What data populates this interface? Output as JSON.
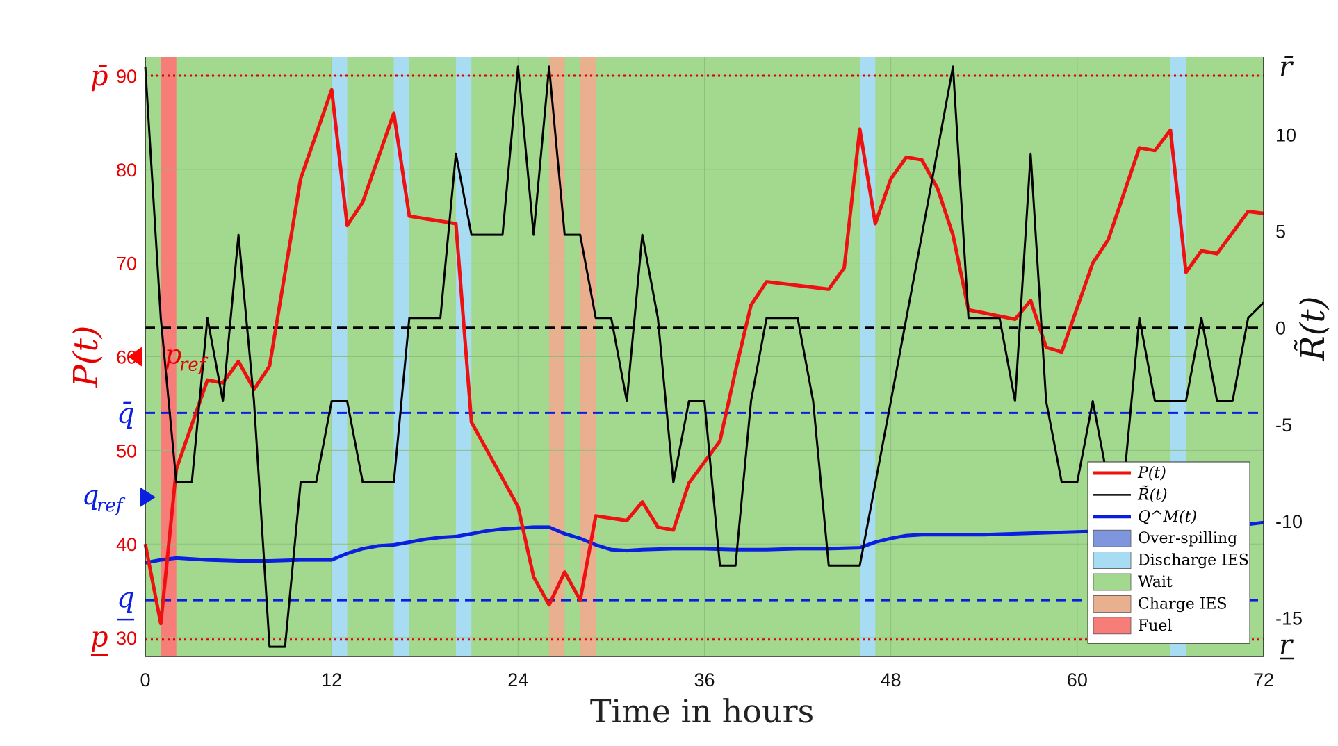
{
  "chart_data": {
    "type": "line",
    "xlabel": "Time in hours",
    "ylabel_left": "P(t)",
    "ylabel_right": "R̃(t)",
    "xlim": [
      0,
      72
    ],
    "ylim_left": [
      28,
      92
    ],
    "ylim_right": [
      -17,
      14
    ],
    "x_ticks": [
      0,
      12,
      24,
      36,
      48,
      60,
      72
    ],
    "y_ticks_left": [
      30,
      40,
      50,
      60,
      70,
      80,
      90
    ],
    "y_ticks_right": [
      -15,
      -10,
      -5,
      0,
      5,
      10
    ],
    "grid": true,
    "legend_position": "bottom-right",
    "left_axis_symbols": {
      "p_max": "p̄",
      "p_min": "p",
      "q_max": "q̄",
      "q_min": "q",
      "p_ref": "p",
      "p_ref_sub": "ref",
      "q_ref": "q",
      "q_ref_sub": "ref"
    },
    "right_axis_symbols": {
      "r_max": "r̄",
      "r_min": "r"
    },
    "reference_lines": {
      "p_max": 90,
      "p_min": 29.8,
      "q_max": 54,
      "q_min": 34,
      "p_ref": 60,
      "q_ref": 45,
      "r_zero": 0
    },
    "phases": [
      {
        "start": 1,
        "end": 2,
        "mode": "Fuel"
      },
      {
        "start": 12,
        "end": 13,
        "mode": "Discharge IES"
      },
      {
        "start": 16,
        "end": 17,
        "mode": "Discharge IES"
      },
      {
        "start": 20,
        "end": 21,
        "mode": "Discharge IES"
      },
      {
        "start": 26,
        "end": 27,
        "mode": "Charge IES"
      },
      {
        "start": 28,
        "end": 29,
        "mode": "Charge IES"
      },
      {
        "start": 46,
        "end": 47,
        "mode": "Discharge IES"
      },
      {
        "start": 66,
        "end": 67,
        "mode": "Discharge IES"
      }
    ],
    "legend": [
      {
        "label": "P(t)",
        "kind": "line",
        "color": "#ee1111"
      },
      {
        "label": "R̃(t)",
        "kind": "line",
        "color": "#000000"
      },
      {
        "label": "Q^M(t)",
        "kind": "line",
        "color": "#0a1fe0"
      },
      {
        "label": "Over-spilling",
        "kind": "patch",
        "color": "#7f95de"
      },
      {
        "label": "Discharge IES",
        "kind": "patch",
        "color": "#a8dcf2"
      },
      {
        "label": "Wait",
        "kind": "patch",
        "color": "#a3d88f"
      },
      {
        "label": "Charge IES",
        "kind": "patch",
        "color": "#e8b08e"
      },
      {
        "label": "Fuel",
        "kind": "patch",
        "color": "#f67d78"
      }
    ],
    "series": [
      {
        "name": "P(t)",
        "axis": "left",
        "color": "#ee1111",
        "x": [
          0,
          1,
          2,
          4,
          5,
          6,
          7,
          8,
          10,
          12,
          13,
          14,
          16,
          17,
          20,
          21,
          24,
          25,
          26,
          27,
          28,
          29,
          31,
          32,
          33,
          34,
          35,
          37,
          38,
          39,
          40,
          44,
          45,
          46,
          47,
          48,
          49,
          50,
          51,
          52,
          53,
          56,
          57,
          58,
          59,
          61,
          62,
          64,
          65,
          66,
          67,
          68,
          69,
          71,
          72
        ],
        "y": [
          40,
          31.5,
          48,
          57.5,
          57.2,
          59.5,
          56.5,
          59,
          79,
          88.5,
          74,
          76.5,
          86,
          75,
          74.2,
          53,
          44,
          36.5,
          33.5,
          37,
          34,
          43,
          42.5,
          44.5,
          41.8,
          41.5,
          46.5,
          51,
          58.5,
          65.5,
          68,
          67.2,
          69.5,
          84.3,
          74.2,
          79,
          81.3,
          81,
          78,
          73,
          65,
          64,
          66,
          61,
          60.5,
          70,
          72.5,
          82.3,
          82,
          84.2,
          69,
          71.3,
          71,
          75.5,
          75.3
        ]
      },
      {
        "name": "R̃(t)",
        "axis": "right",
        "color": "#000000",
        "x": [
          0,
          1,
          2,
          3,
          4,
          5,
          6,
          7,
          8,
          9,
          10,
          11,
          12,
          13,
          14,
          16,
          17,
          19,
          20,
          21,
          23,
          24,
          25,
          26,
          27,
          28,
          29,
          30,
          31,
          32,
          33,
          34,
          35,
          36,
          37,
          38,
          39,
          40,
          42,
          43,
          44,
          46,
          48,
          50,
          52,
          53,
          55,
          56,
          57,
          58,
          59,
          60,
          61,
          62,
          63,
          64,
          65,
          67,
          68,
          69,
          70,
          71,
          72
        ],
        "y": [
          13.5,
          0.5,
          -8,
          -8,
          0.5,
          -3.8,
          4.8,
          -3.8,
          -16.5,
          -16.5,
          -8,
          -8,
          -3.8,
          -3.8,
          -8,
          -8,
          0.5,
          0.5,
          9,
          4.8,
          4.8,
          13.5,
          4.8,
          13.5,
          4.8,
          4.8,
          0.5,
          0.5,
          -3.8,
          4.8,
          0.5,
          -8,
          -3.8,
          -3.8,
          -12.3,
          -12.3,
          -3.8,
          0.5,
          0.5,
          -3.8,
          -12.3,
          -12.3,
          -3.8,
          4.8,
          13.5,
          0.5,
          0.5,
          -3.8,
          9,
          -3.8,
          -8,
          -8,
          -3.8,
          -8,
          -8,
          0.5,
          -3.8,
          -3.8,
          0.5,
          -3.8,
          -3.8,
          0.5,
          1.3
        ]
      },
      {
        "name": "Q^M(t)",
        "axis": "left",
        "color": "#0a1fe0",
        "x": [
          0,
          1,
          2,
          4,
          6,
          8,
          10,
          12,
          13,
          14,
          15,
          16,
          17,
          18,
          19,
          20,
          21,
          22,
          23,
          24,
          25,
          26,
          27,
          28,
          29,
          30,
          31,
          32,
          34,
          36,
          38,
          40,
          42,
          44,
          46,
          47,
          48,
          49,
          50,
          52,
          54,
          56,
          58,
          60,
          62,
          64,
          66,
          68,
          70,
          72
        ],
        "y": [
          38,
          38.3,
          38.5,
          38.3,
          38.2,
          38.2,
          38.3,
          38.3,
          39.0,
          39.5,
          39.8,
          39.9,
          40.2,
          40.5,
          40.7,
          40.8,
          41.1,
          41.4,
          41.6,
          41.7,
          41.8,
          41.8,
          41.1,
          40.6,
          39.9,
          39.4,
          39.3,
          39.4,
          39.5,
          39.5,
          39.4,
          39.4,
          39.5,
          39.5,
          39.6,
          40.2,
          40.6,
          40.9,
          41.0,
          41.0,
          41.0,
          41.1,
          41.2,
          41.3,
          41.4,
          41.5,
          41.6,
          41.7,
          41.9,
          42.3
        ]
      }
    ]
  }
}
